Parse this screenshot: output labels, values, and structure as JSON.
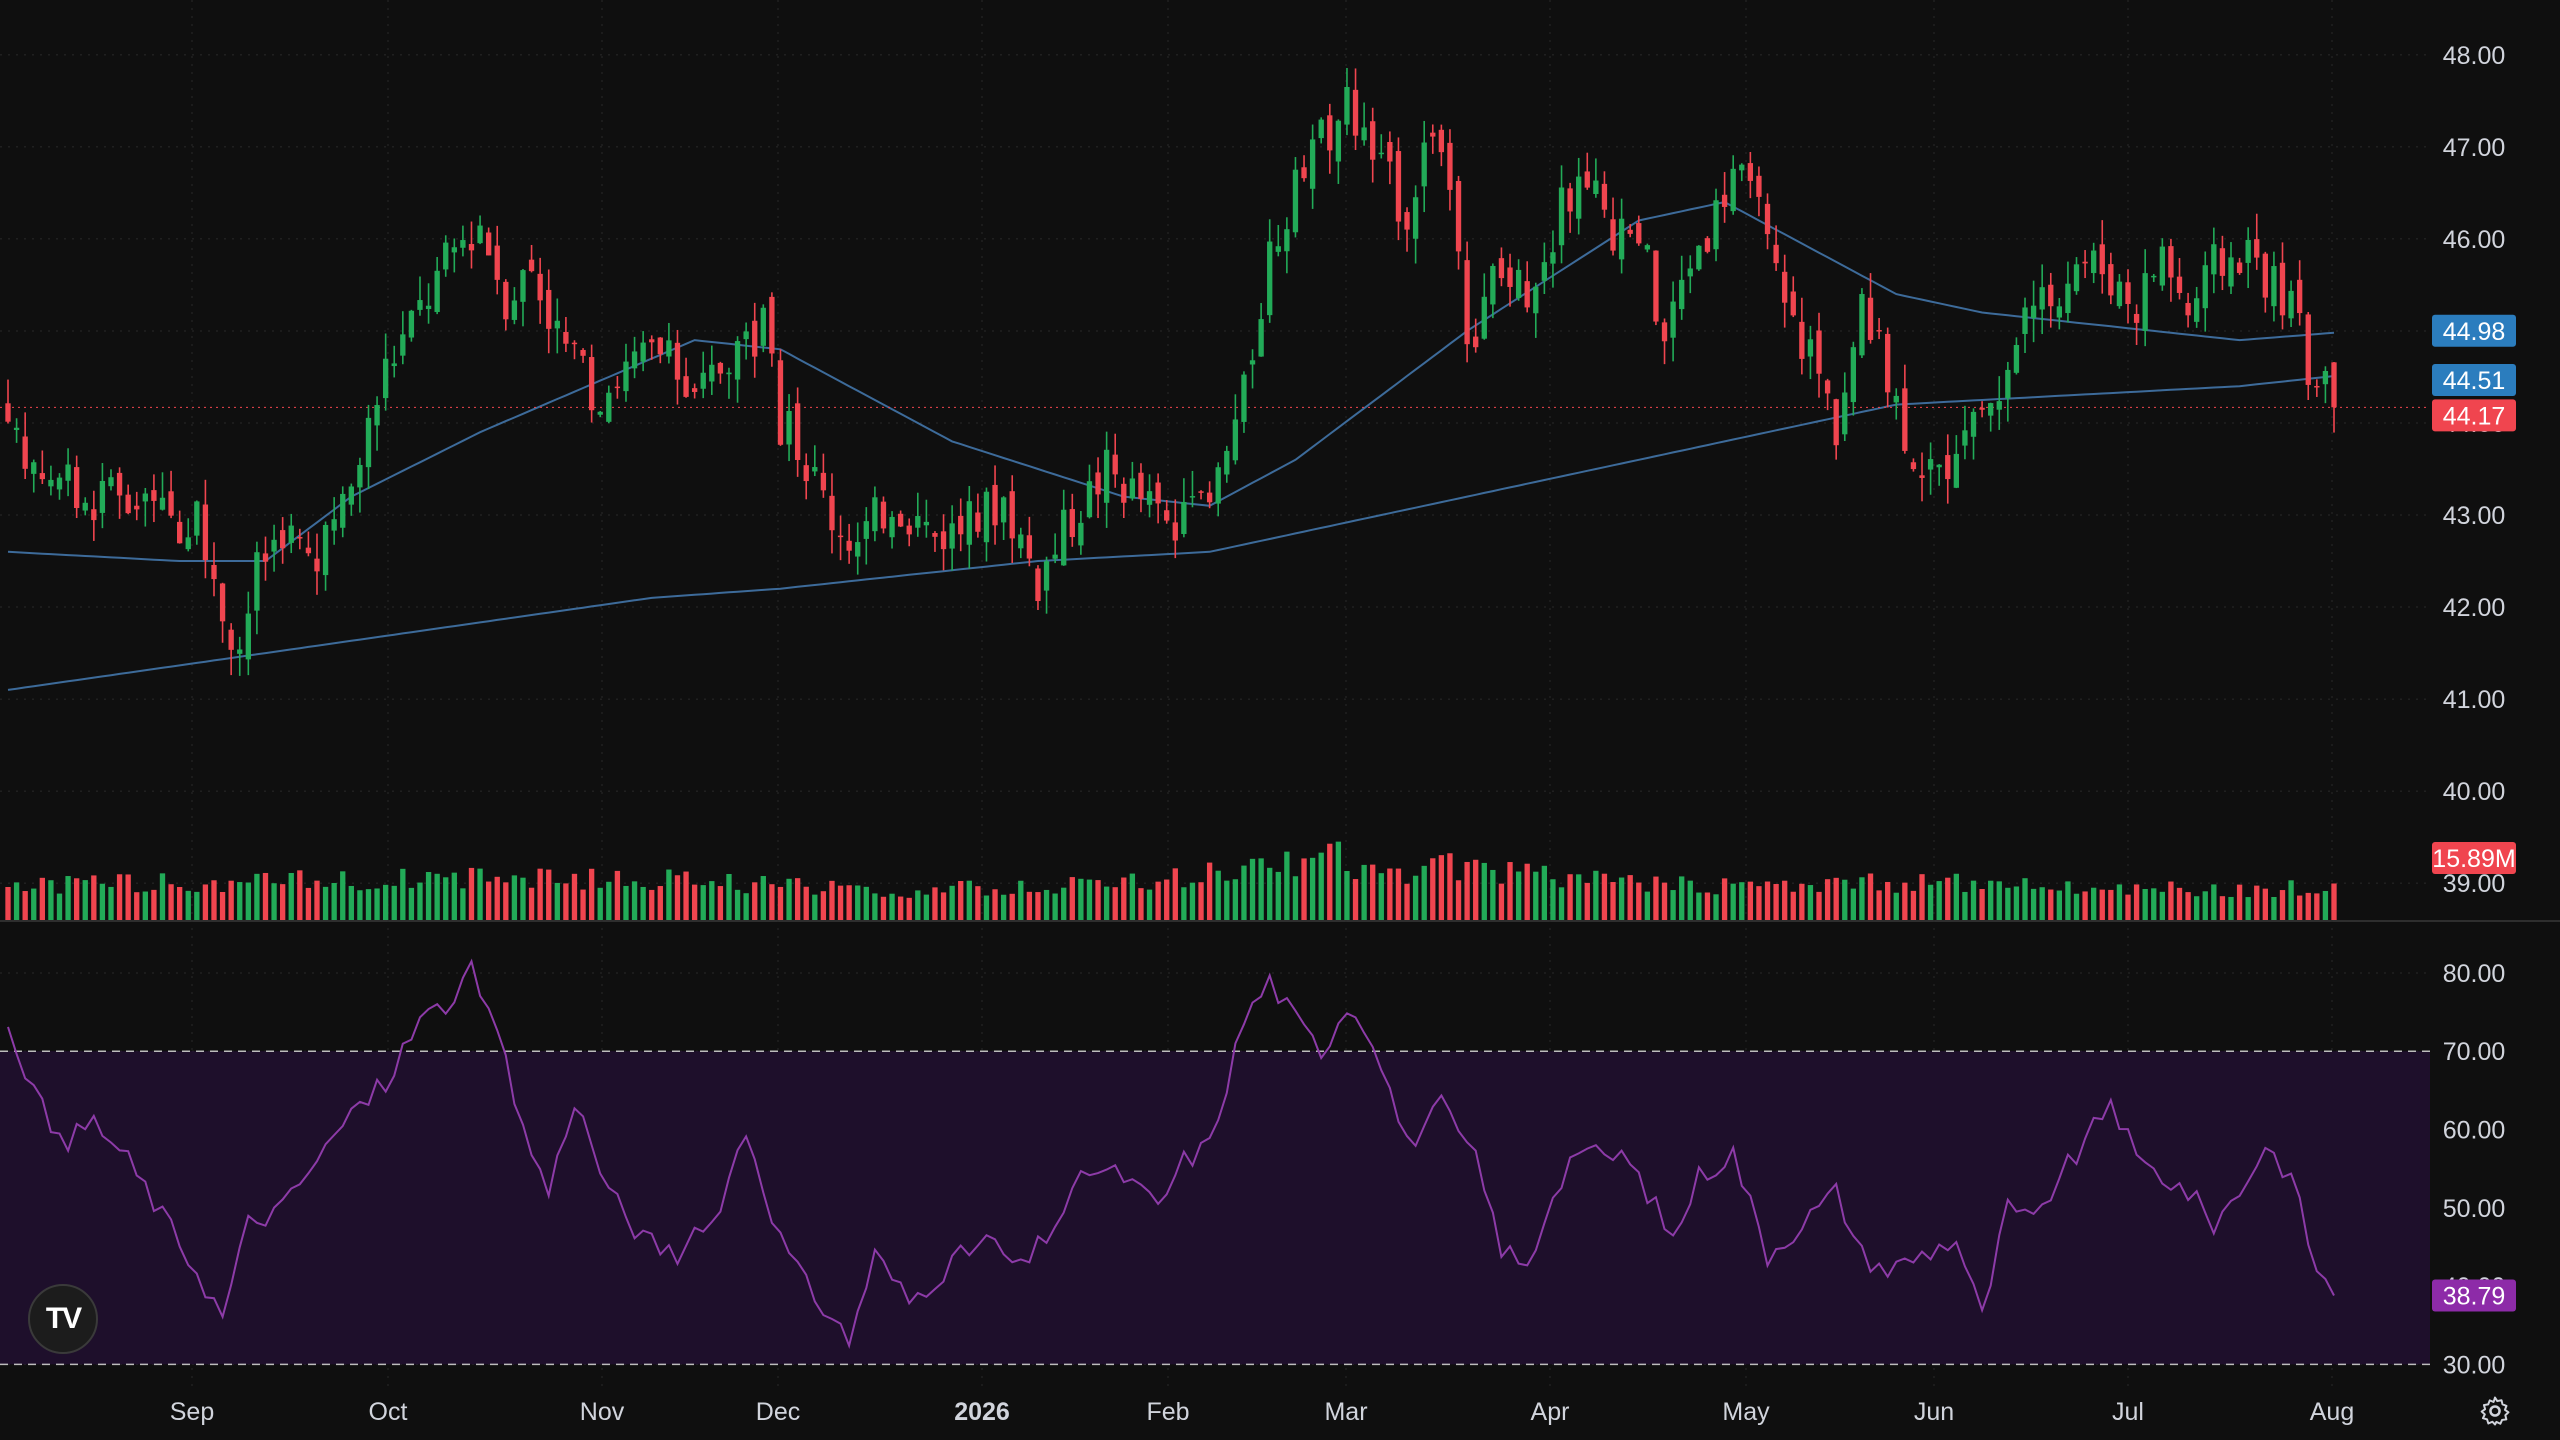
{
  "chart_data": {
    "type": "candlestick",
    "price_axis": {
      "ticks": [
        "48.00",
        "47.00",
        "46.00",
        "45.00",
        "44.00",
        "43.00",
        "42.00",
        "41.00",
        "40.00",
        "39.00"
      ],
      "range": [
        38.6,
        48.4
      ]
    },
    "rsi_axis": {
      "ticks": [
        "80.00",
        "70.00",
        "60.00",
        "50.00",
        "40.00",
        "30.00"
      ],
      "range": [
        28,
        86
      ],
      "upper_band": 70,
      "lower_band": 30
    },
    "x_labels": [
      "Sep",
      "Oct",
      "Nov",
      "Dec",
      "2026",
      "Feb",
      "Mar",
      "Apr",
      "May",
      "Jun",
      "Jul",
      "Aug"
    ],
    "bar_count": 272,
    "current_price": "44.17",
    "ma_fast_label": "44.98",
    "ma_slow_label": "44.51",
    "volume_label": "15.89M",
    "rsi_label": "38.79",
    "close_series": [
      [
        0,
        43.8
      ],
      [
        8,
        43.2
      ],
      [
        16,
        43.1
      ],
      [
        22,
        42.9
      ],
      [
        24,
        42.2
      ],
      [
        27,
        41.6
      ],
      [
        29,
        42.4
      ],
      [
        32,
        42.9
      ],
      [
        36,
        42.4
      ],
      [
        40,
        43.3
      ],
      [
        44,
        44.6
      ],
      [
        49,
        45.4
      ],
      [
        52,
        45.9
      ],
      [
        55,
        46.2
      ],
      [
        58,
        45.4
      ],
      [
        61,
        45.7
      ],
      [
        64,
        45.0
      ],
      [
        68,
        44.3
      ],
      [
        72,
        44.6
      ],
      [
        76,
        44.8
      ],
      [
        80,
        44.2
      ],
      [
        84,
        44.8
      ],
      [
        88,
        45.0
      ],
      [
        90,
        44.0
      ],
      [
        93,
        43.6
      ],
      [
        96,
        43.0
      ],
      [
        99,
        42.7
      ],
      [
        103,
        43.2
      ],
      [
        108,
        42.8
      ],
      [
        112,
        42.9
      ],
      [
        116,
        43.2
      ],
      [
        120,
        42.3
      ],
      [
        124,
        43.0
      ],
      [
        128,
        43.5
      ],
      [
        132,
        43.2
      ],
      [
        136,
        42.8
      ],
      [
        140,
        43.1
      ],
      [
        144,
        44.3
      ],
      [
        147,
        45.9
      ],
      [
        151,
        46.7
      ],
      [
        154,
        47.2
      ],
      [
        156,
        47.5
      ],
      [
        159,
        46.9
      ],
      [
        163,
        46.3
      ],
      [
        166,
        47.3
      ],
      [
        168,
        46.6
      ],
      [
        170,
        44.6
      ],
      [
        173,
        45.6
      ],
      [
        177,
        45.5
      ],
      [
        181,
        46.3
      ],
      [
        184,
        46.8
      ],
      [
        187,
        45.9
      ],
      [
        190,
        46.1
      ],
      [
        193,
        44.9
      ],
      [
        196,
        45.8
      ],
      [
        199,
        46.3
      ],
      [
        201,
        46.8
      ],
      [
        204,
        46.2
      ],
      [
        207,
        45.2
      ],
      [
        210,
        44.8
      ],
      [
        213,
        44.0
      ],
      [
        216,
        45.2
      ],
      [
        219,
        44.5
      ],
      [
        222,
        43.7
      ],
      [
        225,
        43.4
      ],
      [
        228,
        44.1
      ],
      [
        232,
        44.3
      ],
      [
        235,
        45.0
      ],
      [
        238,
        45.4
      ],
      [
        241,
        45.8
      ],
      [
        244,
        45.7
      ],
      [
        248,
        45.3
      ],
      [
        251,
        45.9
      ],
      [
        254,
        45.2
      ],
      [
        257,
        45.7
      ],
      [
        261,
        45.9
      ],
      [
        264,
        45.5
      ],
      [
        266,
        45.3
      ],
      [
        268,
        44.6
      ],
      [
        271,
        44.17
      ]
    ],
    "ma_fast_series": [
      [
        0,
        42.6
      ],
      [
        20,
        42.5
      ],
      [
        30,
        42.5
      ],
      [
        40,
        43.2
      ],
      [
        55,
        43.9
      ],
      [
        70,
        44.5
      ],
      [
        80,
        44.9
      ],
      [
        90,
        44.8
      ],
      [
        100,
        44.3
      ],
      [
        110,
        43.8
      ],
      [
        120,
        43.5
      ],
      [
        130,
        43.2
      ],
      [
        140,
        43.1
      ],
      [
        150,
        43.6
      ],
      [
        160,
        44.3
      ],
      [
        170,
        45.0
      ],
      [
        180,
        45.6
      ],
      [
        190,
        46.2
      ],
      [
        200,
        46.4
      ],
      [
        210,
        45.9
      ],
      [
        220,
        45.4
      ],
      [
        230,
        45.2
      ],
      [
        240,
        45.1
      ],
      [
        250,
        45.0
      ],
      [
        260,
        44.9
      ],
      [
        271,
        44.98
      ]
    ],
    "ma_slow_series": [
      [
        0,
        41.1
      ],
      [
        30,
        41.5
      ],
      [
        60,
        41.9
      ],
      [
        75,
        42.1
      ],
      [
        90,
        42.2
      ],
      [
        100,
        42.3
      ],
      [
        120,
        42.5
      ],
      [
        140,
        42.6
      ],
      [
        155,
        42.9
      ],
      [
        170,
        43.2
      ],
      [
        185,
        43.5
      ],
      [
        200,
        43.8
      ],
      [
        210,
        44.0
      ],
      [
        220,
        44.2
      ],
      [
        240,
        44.3
      ],
      [
        260,
        44.4
      ],
      [
        271,
        44.51
      ]
    ],
    "volume_series": [
      [
        0,
        36
      ],
      [
        20,
        38
      ],
      [
        40,
        42
      ],
      [
        60,
        45
      ],
      [
        80,
        40
      ],
      [
        100,
        30
      ],
      [
        120,
        34
      ],
      [
        140,
        46
      ],
      [
        150,
        58
      ],
      [
        155,
        68
      ],
      [
        158,
        48
      ],
      [
        170,
        55
      ],
      [
        180,
        44
      ],
      [
        200,
        34
      ],
      [
        220,
        38
      ],
      [
        240,
        36
      ],
      [
        260,
        30
      ],
      [
        271,
        34
      ]
    ],
    "rsi_series": [
      [
        0,
        74
      ],
      [
        3,
        65
      ],
      [
        6,
        58
      ],
      [
        10,
        61
      ],
      [
        14,
        56
      ],
      [
        18,
        49
      ],
      [
        22,
        42
      ],
      [
        25,
        36
      ],
      [
        28,
        48
      ],
      [
        32,
        50
      ],
      [
        36,
        56
      ],
      [
        40,
        62
      ],
      [
        44,
        66
      ],
      [
        48,
        74
      ],
      [
        51,
        76
      ],
      [
        54,
        80
      ],
      [
        57,
        72
      ],
      [
        60,
        60
      ],
      [
        63,
        52
      ],
      [
        66,
        64
      ],
      [
        70,
        52
      ],
      [
        74,
        46
      ],
      [
        78,
        44
      ],
      [
        82,
        48
      ],
      [
        86,
        60
      ],
      [
        90,
        46
      ],
      [
        93,
        40
      ],
      [
        96,
        36
      ],
      [
        98,
        33
      ],
      [
        101,
        44
      ],
      [
        105,
        38
      ],
      [
        110,
        43
      ],
      [
        114,
        46
      ],
      [
        118,
        42
      ],
      [
        122,
        48
      ],
      [
        126,
        55
      ],
      [
        130,
        54
      ],
      [
        134,
        50
      ],
      [
        137,
        56
      ],
      [
        140,
        58
      ],
      [
        144,
        74
      ],
      [
        147,
        79
      ],
      [
        150,
        74
      ],
      [
        153,
        70
      ],
      [
        156,
        76
      ],
      [
        159,
        72
      ],
      [
        163,
        58
      ],
      [
        167,
        63
      ],
      [
        171,
        56
      ],
      [
        174,
        45
      ],
      [
        177,
        42
      ],
      [
        180,
        52
      ],
      [
        183,
        58
      ],
      [
        186,
        56
      ],
      [
        188,
        57
      ],
      [
        191,
        52
      ],
      [
        194,
        46
      ],
      [
        197,
        54
      ],
      [
        201,
        57
      ],
      [
        205,
        44
      ],
      [
        209,
        48
      ],
      [
        213,
        52
      ],
      [
        216,
        44
      ],
      [
        219,
        42
      ],
      [
        223,
        44
      ],
      [
        227,
        46
      ],
      [
        230,
        36
      ],
      [
        233,
        50
      ],
      [
        236,
        48
      ],
      [
        239,
        54
      ],
      [
        242,
        58
      ],
      [
        245,
        64
      ],
      [
        248,
        56
      ],
      [
        251,
        54
      ],
      [
        254,
        52
      ],
      [
        257,
        48
      ],
      [
        260,
        52
      ],
      [
        263,
        58
      ],
      [
        266,
        54
      ],
      [
        269,
        42
      ],
      [
        271,
        38.79
      ]
    ],
    "colors": {
      "up": "#22ab58",
      "down": "#f0454f",
      "ma_fast": "#3d6b9a",
      "ma_slow": "#3d6b9a",
      "rsi": "#8d3ba8",
      "rsi_band_fill": "#1e0f2b",
      "fast_tag": "#2b7dbe",
      "slow_tag": "#2b7dbe",
      "price_tag": "#f0454f",
      "volume_tag": "#f0454f",
      "rsi_tag": "#8d2ba8",
      "grid": "#2a2a2a",
      "background": "#0f0f0f"
    }
  },
  "logo_text": "TV",
  "settings_icon": "gear-icon"
}
